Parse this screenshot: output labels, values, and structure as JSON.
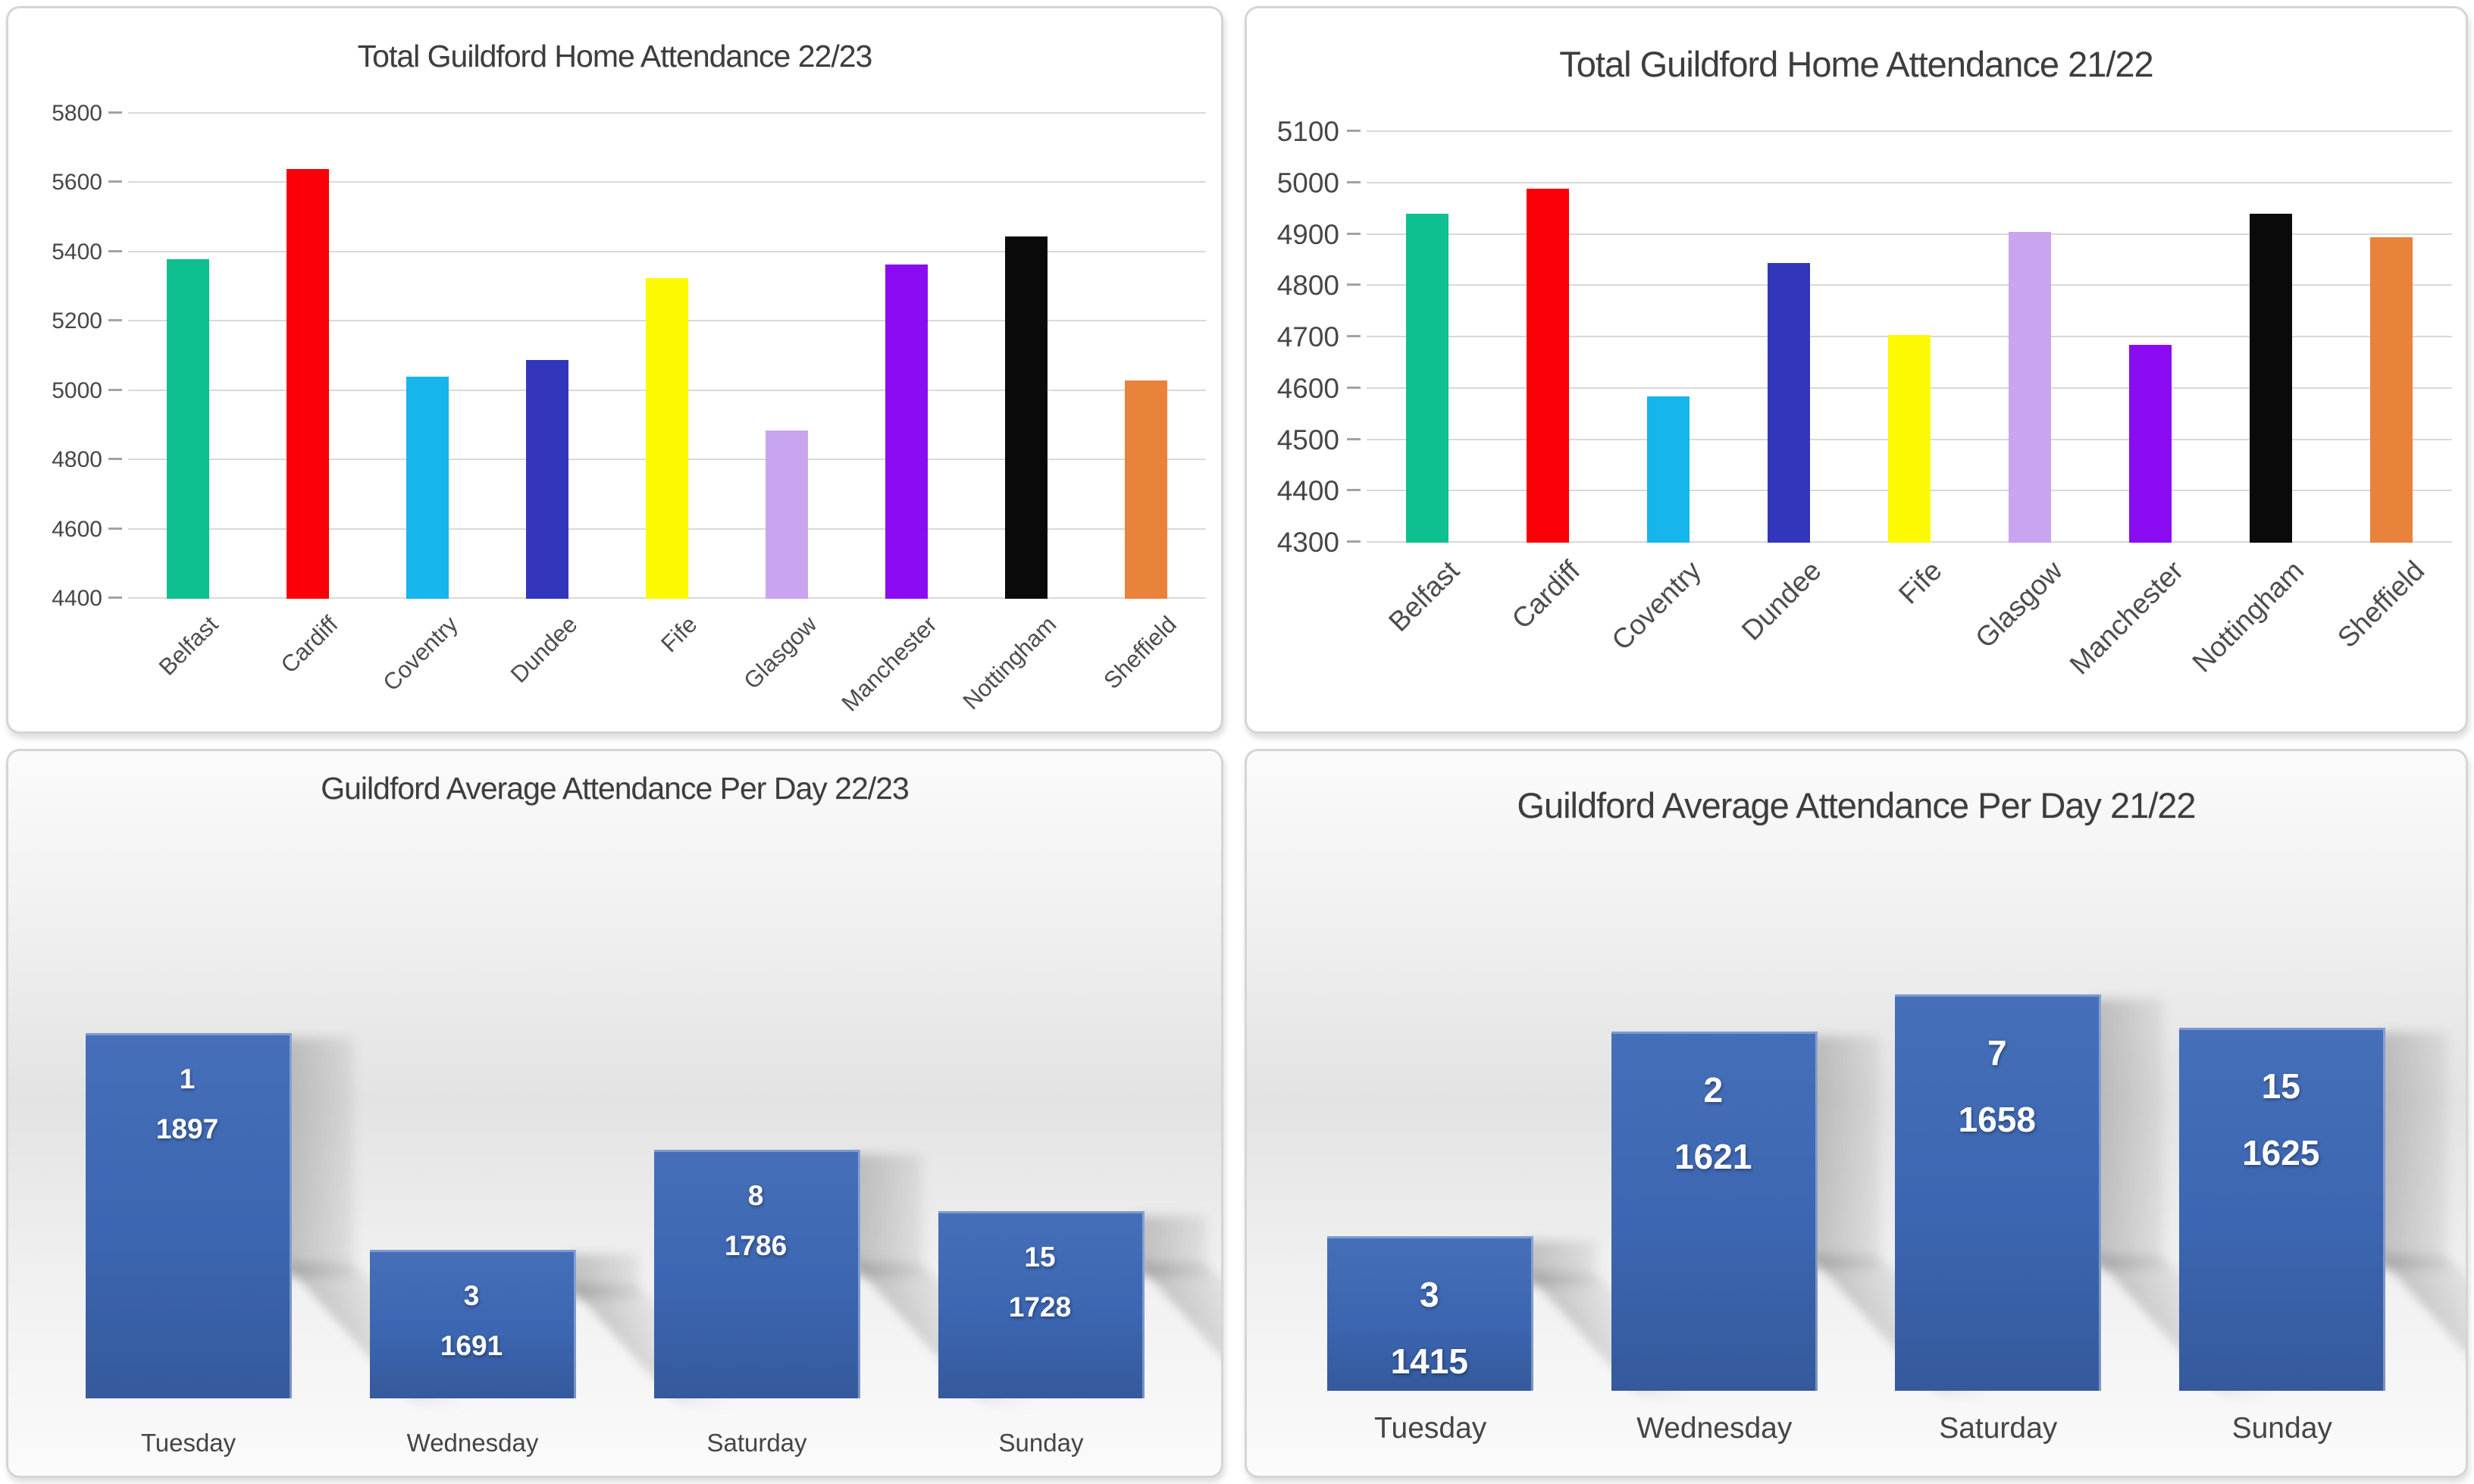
{
  "page": {
    "background": "#ffffff"
  },
  "colors": {
    "card_border": "#d5d5d5",
    "gridline": "#d9d9d9",
    "axis_tick": "#a3a3a3",
    "title_text": "#3d3d3d",
    "axis_text": "#474747",
    "category_text": "#4d4d4d",
    "daily_bar_blue": "#3c66b1",
    "daily_label_text": "#ffffff"
  },
  "chart_data": [
    {
      "id": "total-home-attendance-22-23",
      "type": "bar",
      "title": "Total Guildford Home Attendance 22/23",
      "categories": [
        "Belfast",
        "Cardiff",
        "Coventry",
        "Dundee",
        "Fife",
        "Glasgow",
        "Manchester",
        "Nottingham",
        "Sheffield"
      ],
      "values": [
        5380,
        5640,
        5040,
        5090,
        5325,
        4885,
        5365,
        5445,
        5030
      ],
      "bar_colors": [
        "#0ec08f",
        "#fb0007",
        "#16b5ec",
        "#3236bc",
        "#fdf903",
        "#c9a4ef",
        "#8b0bf3",
        "#0a0a0a",
        "#e9823b"
      ],
      "ylim": [
        4400,
        5800
      ],
      "yticks": [
        4400,
        4600,
        4800,
        5000,
        5200,
        5400,
        5600,
        5800
      ],
      "grid": true,
      "legend": "none",
      "x_label_rotation": -45,
      "xlabel": "",
      "ylabel": ""
    },
    {
      "id": "total-home-attendance-21-22",
      "type": "bar",
      "title": "Total Guildford Home Attendance 21/22",
      "categories": [
        "Belfast",
        "Cardiff",
        "Coventry",
        "Dundee",
        "Fife",
        "Glasgow",
        "Manchester",
        "Nottingham",
        "Sheffield"
      ],
      "values": [
        4940,
        4990,
        4585,
        4845,
        4705,
        4905,
        4685,
        4940,
        4895
      ],
      "bar_colors": [
        "#0ec08f",
        "#fb0007",
        "#16b5ec",
        "#3236bc",
        "#fdf903",
        "#c9a4ef",
        "#8b0bf3",
        "#0a0a0a",
        "#e9823b"
      ],
      "ylim": [
        4300,
        5100
      ],
      "yticks": [
        4300,
        4400,
        4500,
        4600,
        4700,
        4800,
        4900,
        5000,
        5100
      ],
      "grid": true,
      "legend": "none",
      "x_label_rotation": -45,
      "xlabel": "",
      "ylabel": ""
    },
    {
      "id": "average-attendance-per-day-22-23",
      "type": "bar",
      "title": "Guildford Average Attendance Per Day 22/23",
      "categories": [
        "Tuesday",
        "Wednesday",
        "Saturday",
        "Sunday"
      ],
      "values": [
        1897,
        1691,
        1786,
        1728
      ],
      "bar_count_labels": [
        "1",
        "3",
        "8",
        "15"
      ],
      "bar_color": "#3c66b1",
      "ylim": [
        1550,
        1950
      ],
      "grid": false,
      "yaxis_hidden": true,
      "data_labels": "inside-top",
      "legend": "none",
      "xlabel": "",
      "ylabel": ""
    },
    {
      "id": "average-attendance-per-day-21-22",
      "type": "bar",
      "title": "Guildford Average Attendance Per Day 21/22",
      "categories": [
        "Tuesday",
        "Wednesday",
        "Saturday",
        "Sunday"
      ],
      "values": [
        1415,
        1621,
        1658,
        1625
      ],
      "bar_count_labels": [
        "3",
        "2",
        "7",
        "15"
      ],
      "bar_color": "#3c66b1",
      "ylim": [
        1260,
        1700
      ],
      "grid": false,
      "yaxis_hidden": true,
      "data_labels": "inside-top",
      "legend": "none",
      "xlabel": "",
      "ylabel": ""
    }
  ]
}
